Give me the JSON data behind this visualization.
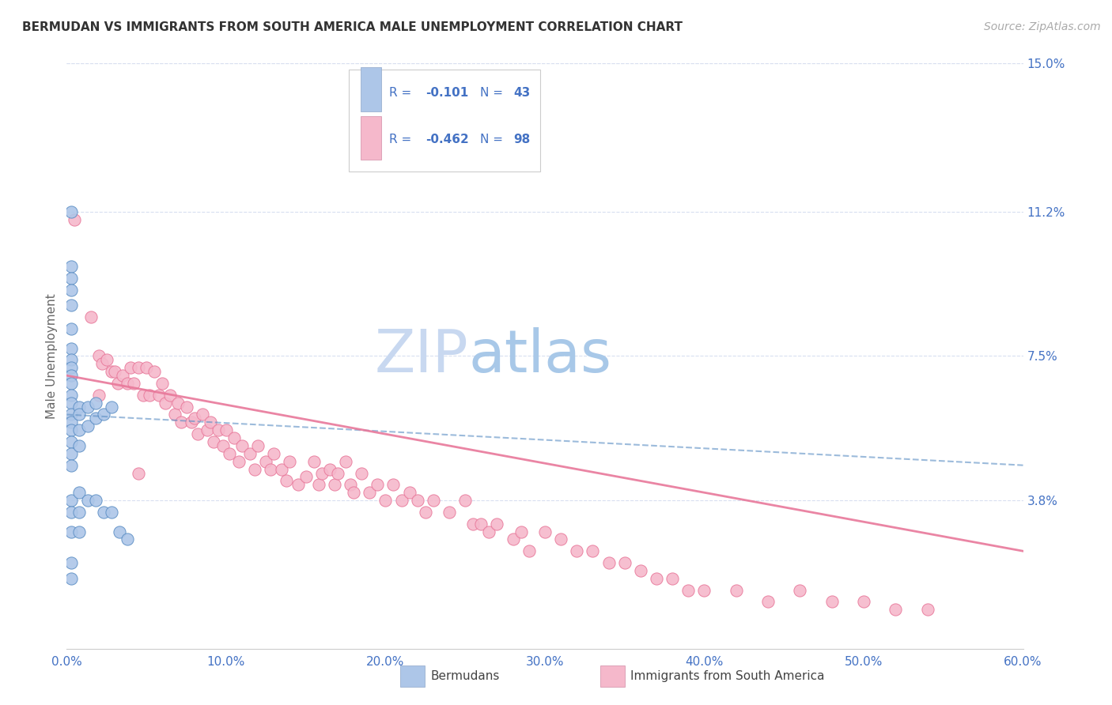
{
  "title": "BERMUDAN VS IMMIGRANTS FROM SOUTH AMERICA MALE UNEMPLOYMENT CORRELATION CHART",
  "source": "Source: ZipAtlas.com",
  "ylabel": "Male Unemployment",
  "xlim": [
    0.0,
    0.6
  ],
  "ylim": [
    0.0,
    0.15
  ],
  "xtick_labels": [
    "0.0%",
    "10.0%",
    "20.0%",
    "30.0%",
    "40.0%",
    "50.0%",
    "60.0%"
  ],
  "xtick_vals": [
    0.0,
    0.1,
    0.2,
    0.3,
    0.4,
    0.5,
    0.6
  ],
  "ytick_labels_right": [
    "3.8%",
    "7.5%",
    "11.2%",
    "15.0%"
  ],
  "ytick_vals_right": [
    0.038,
    0.075,
    0.112,
    0.15
  ],
  "color_blue": "#adc6e8",
  "color_pink": "#f5b8cb",
  "color_blue_dark": "#5b8ec4",
  "color_pink_dark": "#e8789a",
  "color_text_blue": "#4472c4",
  "color_grid": "#d8dff0",
  "watermark_zip": "#c8d8f0",
  "watermark_atlas": "#a8c8e8",
  "bermudans_x": [
    0.003,
    0.003,
    0.003,
    0.003,
    0.003,
    0.003,
    0.003,
    0.003,
    0.003,
    0.003,
    0.003,
    0.003,
    0.003,
    0.003,
    0.003,
    0.003,
    0.003,
    0.003,
    0.003,
    0.008,
    0.008,
    0.008,
    0.008,
    0.013,
    0.013,
    0.018,
    0.018,
    0.023,
    0.028,
    0.003,
    0.003,
    0.003,
    0.003,
    0.003,
    0.008,
    0.008,
    0.008,
    0.013,
    0.018,
    0.023,
    0.028,
    0.033,
    0.038
  ],
  "bermudans_y": [
    0.112,
    0.098,
    0.095,
    0.092,
    0.088,
    0.082,
    0.077,
    0.074,
    0.072,
    0.07,
    0.068,
    0.065,
    0.063,
    0.06,
    0.058,
    0.056,
    0.053,
    0.05,
    0.047,
    0.062,
    0.06,
    0.056,
    0.052,
    0.062,
    0.057,
    0.063,
    0.059,
    0.06,
    0.062,
    0.038,
    0.035,
    0.03,
    0.022,
    0.018,
    0.04,
    0.035,
    0.03,
    0.038,
    0.038,
    0.035,
    0.035,
    0.03,
    0.028
  ],
  "sa_x": [
    0.005,
    0.015,
    0.02,
    0.022,
    0.025,
    0.028,
    0.03,
    0.032,
    0.035,
    0.038,
    0.04,
    0.042,
    0.045,
    0.048,
    0.05,
    0.052,
    0.055,
    0.058,
    0.06,
    0.062,
    0.065,
    0.068,
    0.07,
    0.072,
    0.075,
    0.078,
    0.08,
    0.082,
    0.085,
    0.088,
    0.09,
    0.092,
    0.095,
    0.098,
    0.1,
    0.102,
    0.105,
    0.108,
    0.11,
    0.115,
    0.118,
    0.12,
    0.125,
    0.128,
    0.13,
    0.135,
    0.138,
    0.14,
    0.145,
    0.15,
    0.155,
    0.158,
    0.16,
    0.165,
    0.168,
    0.17,
    0.175,
    0.178,
    0.18,
    0.185,
    0.19,
    0.195,
    0.2,
    0.205,
    0.21,
    0.215,
    0.22,
    0.225,
    0.23,
    0.24,
    0.25,
    0.255,
    0.26,
    0.265,
    0.27,
    0.28,
    0.285,
    0.29,
    0.3,
    0.31,
    0.32,
    0.33,
    0.34,
    0.35,
    0.36,
    0.37,
    0.38,
    0.39,
    0.4,
    0.42,
    0.44,
    0.46,
    0.48,
    0.5,
    0.52,
    0.54,
    0.02,
    0.045
  ],
  "sa_y": [
    0.11,
    0.085,
    0.075,
    0.073,
    0.074,
    0.071,
    0.071,
    0.068,
    0.07,
    0.068,
    0.072,
    0.068,
    0.072,
    0.065,
    0.072,
    0.065,
    0.071,
    0.065,
    0.068,
    0.063,
    0.065,
    0.06,
    0.063,
    0.058,
    0.062,
    0.058,
    0.059,
    0.055,
    0.06,
    0.056,
    0.058,
    0.053,
    0.056,
    0.052,
    0.056,
    0.05,
    0.054,
    0.048,
    0.052,
    0.05,
    0.046,
    0.052,
    0.048,
    0.046,
    0.05,
    0.046,
    0.043,
    0.048,
    0.042,
    0.044,
    0.048,
    0.042,
    0.045,
    0.046,
    0.042,
    0.045,
    0.048,
    0.042,
    0.04,
    0.045,
    0.04,
    0.042,
    0.038,
    0.042,
    0.038,
    0.04,
    0.038,
    0.035,
    0.038,
    0.035,
    0.038,
    0.032,
    0.032,
    0.03,
    0.032,
    0.028,
    0.03,
    0.025,
    0.03,
    0.028,
    0.025,
    0.025,
    0.022,
    0.022,
    0.02,
    0.018,
    0.018,
    0.015,
    0.015,
    0.015,
    0.012,
    0.015,
    0.012,
    0.012,
    0.01,
    0.01,
    0.065,
    0.045
  ],
  "blue_trendline_x": [
    0.0,
    0.6
  ],
  "blue_trendline_y": [
    0.06,
    0.047
  ],
  "pink_trendline_x": [
    0.0,
    0.6
  ],
  "pink_trendline_y": [
    0.07,
    0.025
  ]
}
